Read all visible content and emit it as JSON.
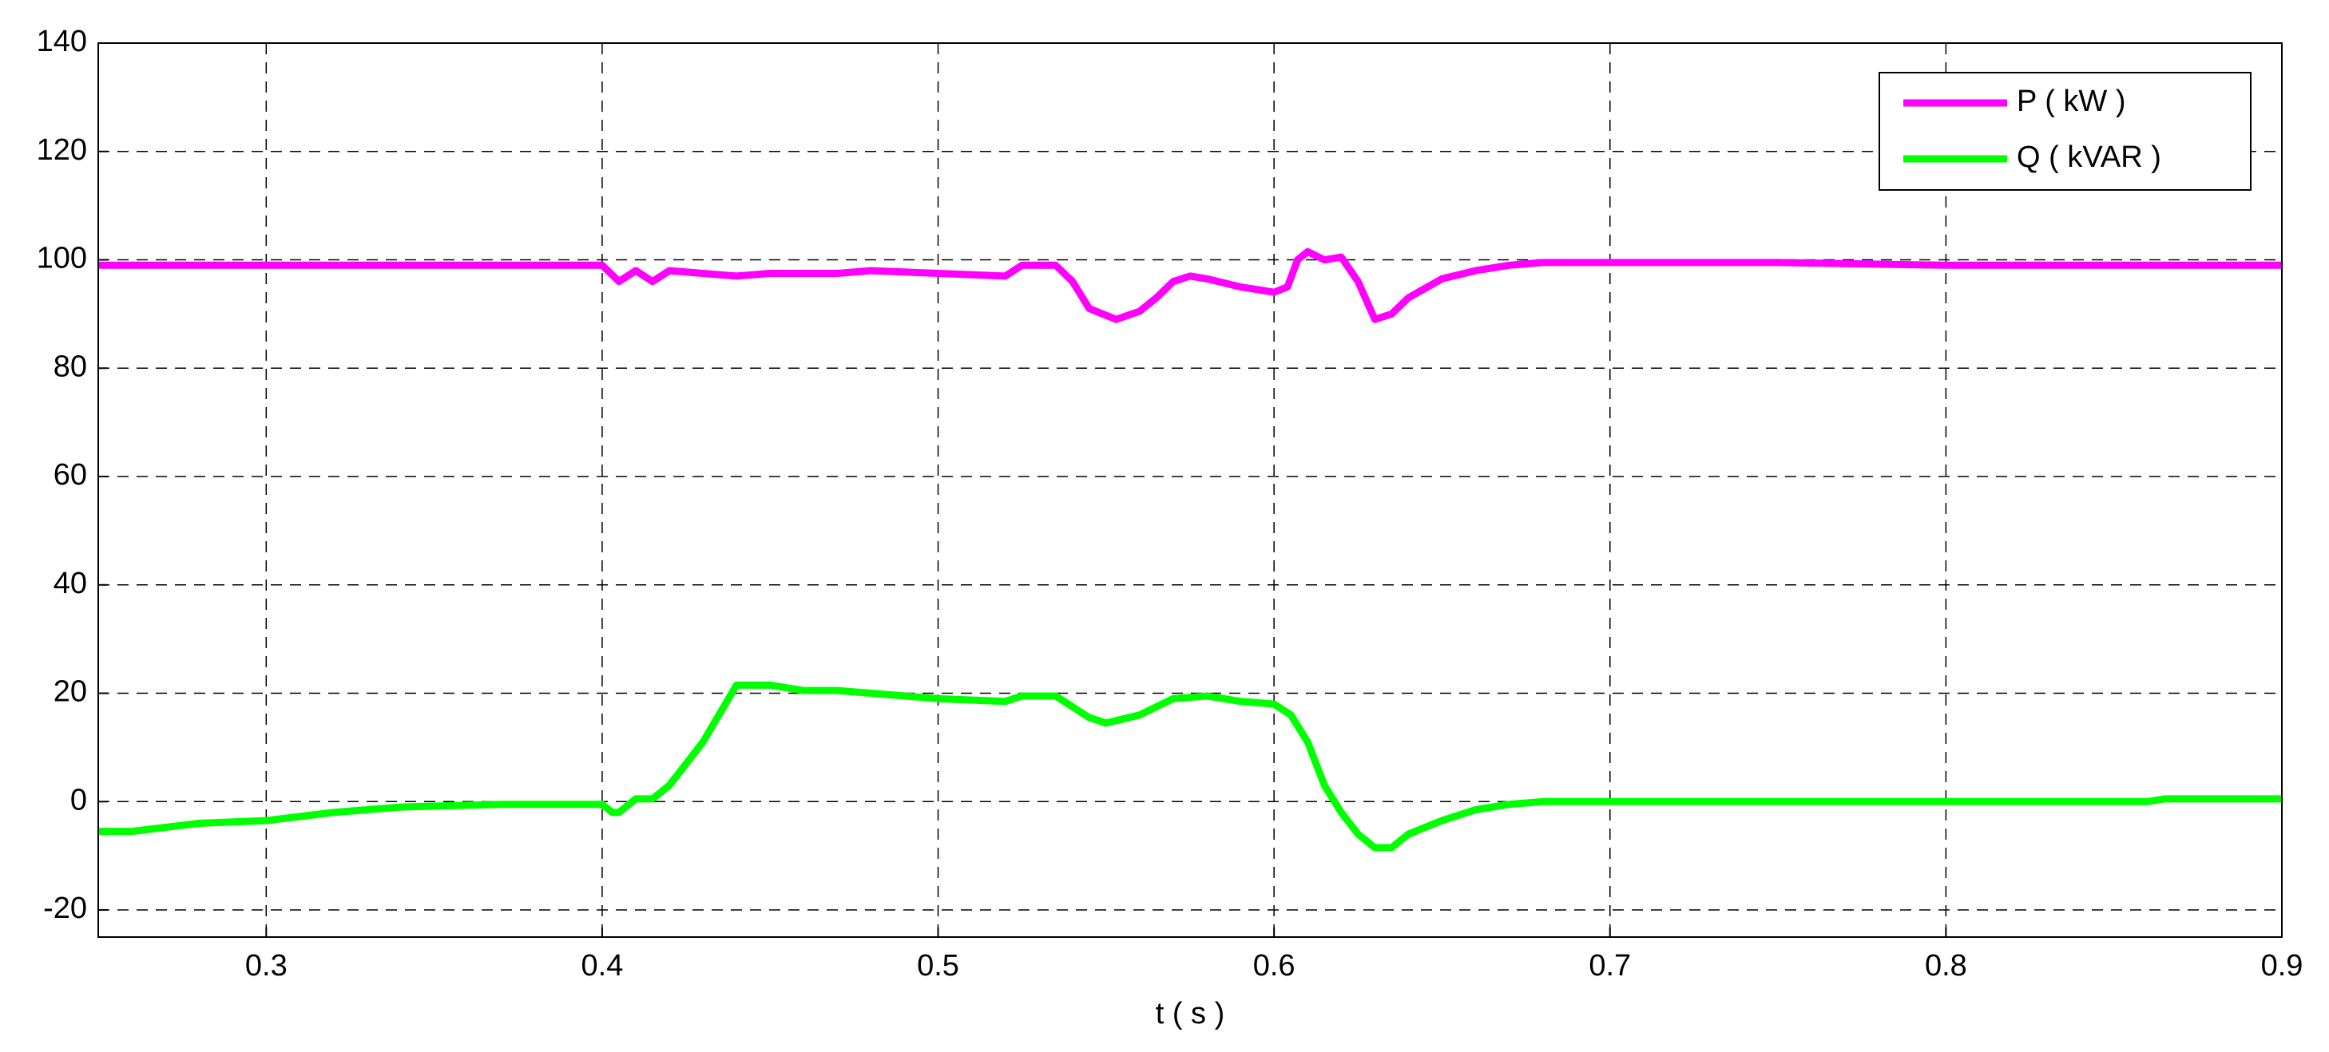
{
  "chart_data": {
    "type": "line",
    "xlabel": "t ( s )",
    "xlim": [
      0.25,
      0.9
    ],
    "xticks": [
      0.3,
      0.4,
      0.5,
      0.6,
      0.7,
      0.8,
      0.9
    ],
    "ylim": [
      -25,
      140
    ],
    "yticks": [
      -20,
      0,
      20,
      40,
      60,
      80,
      100,
      120,
      140
    ],
    "grid": true,
    "legend": "upper right",
    "series": [
      {
        "name": "P ( kW )",
        "color": "#ff00ff",
        "x": [
          0.25,
          0.26,
          0.3,
          0.4,
          0.405,
          0.41,
          0.415,
          0.42,
          0.43,
          0.44,
          0.45,
          0.47,
          0.48,
          0.5,
          0.52,
          0.525,
          0.535,
          0.54,
          0.545,
          0.553,
          0.56,
          0.565,
          0.57,
          0.575,
          0.58,
          0.59,
          0.6,
          0.604,
          0.607,
          0.61,
          0.615,
          0.62,
          0.625,
          0.63,
          0.635,
          0.64,
          0.65,
          0.66,
          0.67,
          0.68,
          0.7,
          0.75,
          0.8,
          0.9
        ],
        "values": [
          99,
          99,
          99,
          99,
          96,
          98,
          96,
          98,
          97.5,
          97,
          97.5,
          97.5,
          98,
          97.5,
          97,
          99,
          99,
          96,
          91,
          89,
          90.5,
          93,
          96,
          97,
          96.5,
          95,
          94,
          95,
          100,
          101.5,
          100,
          100.5,
          96,
          89,
          90,
          93,
          96.5,
          98,
          99,
          99.5,
          99.5,
          99.5,
          99,
          99
        ]
      },
      {
        "name": "Q ( kVAR )",
        "color": "#00ff00",
        "x": [
          0.25,
          0.26,
          0.28,
          0.3,
          0.32,
          0.34,
          0.37,
          0.4,
          0.403,
          0.405,
          0.41,
          0.415,
          0.42,
          0.43,
          0.44,
          0.45,
          0.46,
          0.47,
          0.48,
          0.5,
          0.52,
          0.525,
          0.535,
          0.545,
          0.55,
          0.56,
          0.57,
          0.58,
          0.59,
          0.6,
          0.605,
          0.61,
          0.615,
          0.62,
          0.625,
          0.63,
          0.635,
          0.64,
          0.65,
          0.66,
          0.67,
          0.68,
          0.75,
          0.86,
          0.865,
          0.9
        ],
        "values": [
          -5.5,
          -5.5,
          -4,
          -3.5,
          -2,
          -1,
          -0.5,
          -0.5,
          -2,
          -2,
          0.5,
          0.5,
          3,
          11,
          21.5,
          21.5,
          20.5,
          20.5,
          20,
          19,
          18.5,
          19.5,
          19.5,
          15.5,
          14.5,
          16,
          19,
          19.5,
          18.5,
          18,
          16,
          11,
          3,
          -2,
          -6,
          -8.5,
          -8.5,
          -6,
          -3.5,
          -1.5,
          -0.5,
          0,
          0,
          0,
          0.5,
          0.5
        ]
      }
    ]
  }
}
